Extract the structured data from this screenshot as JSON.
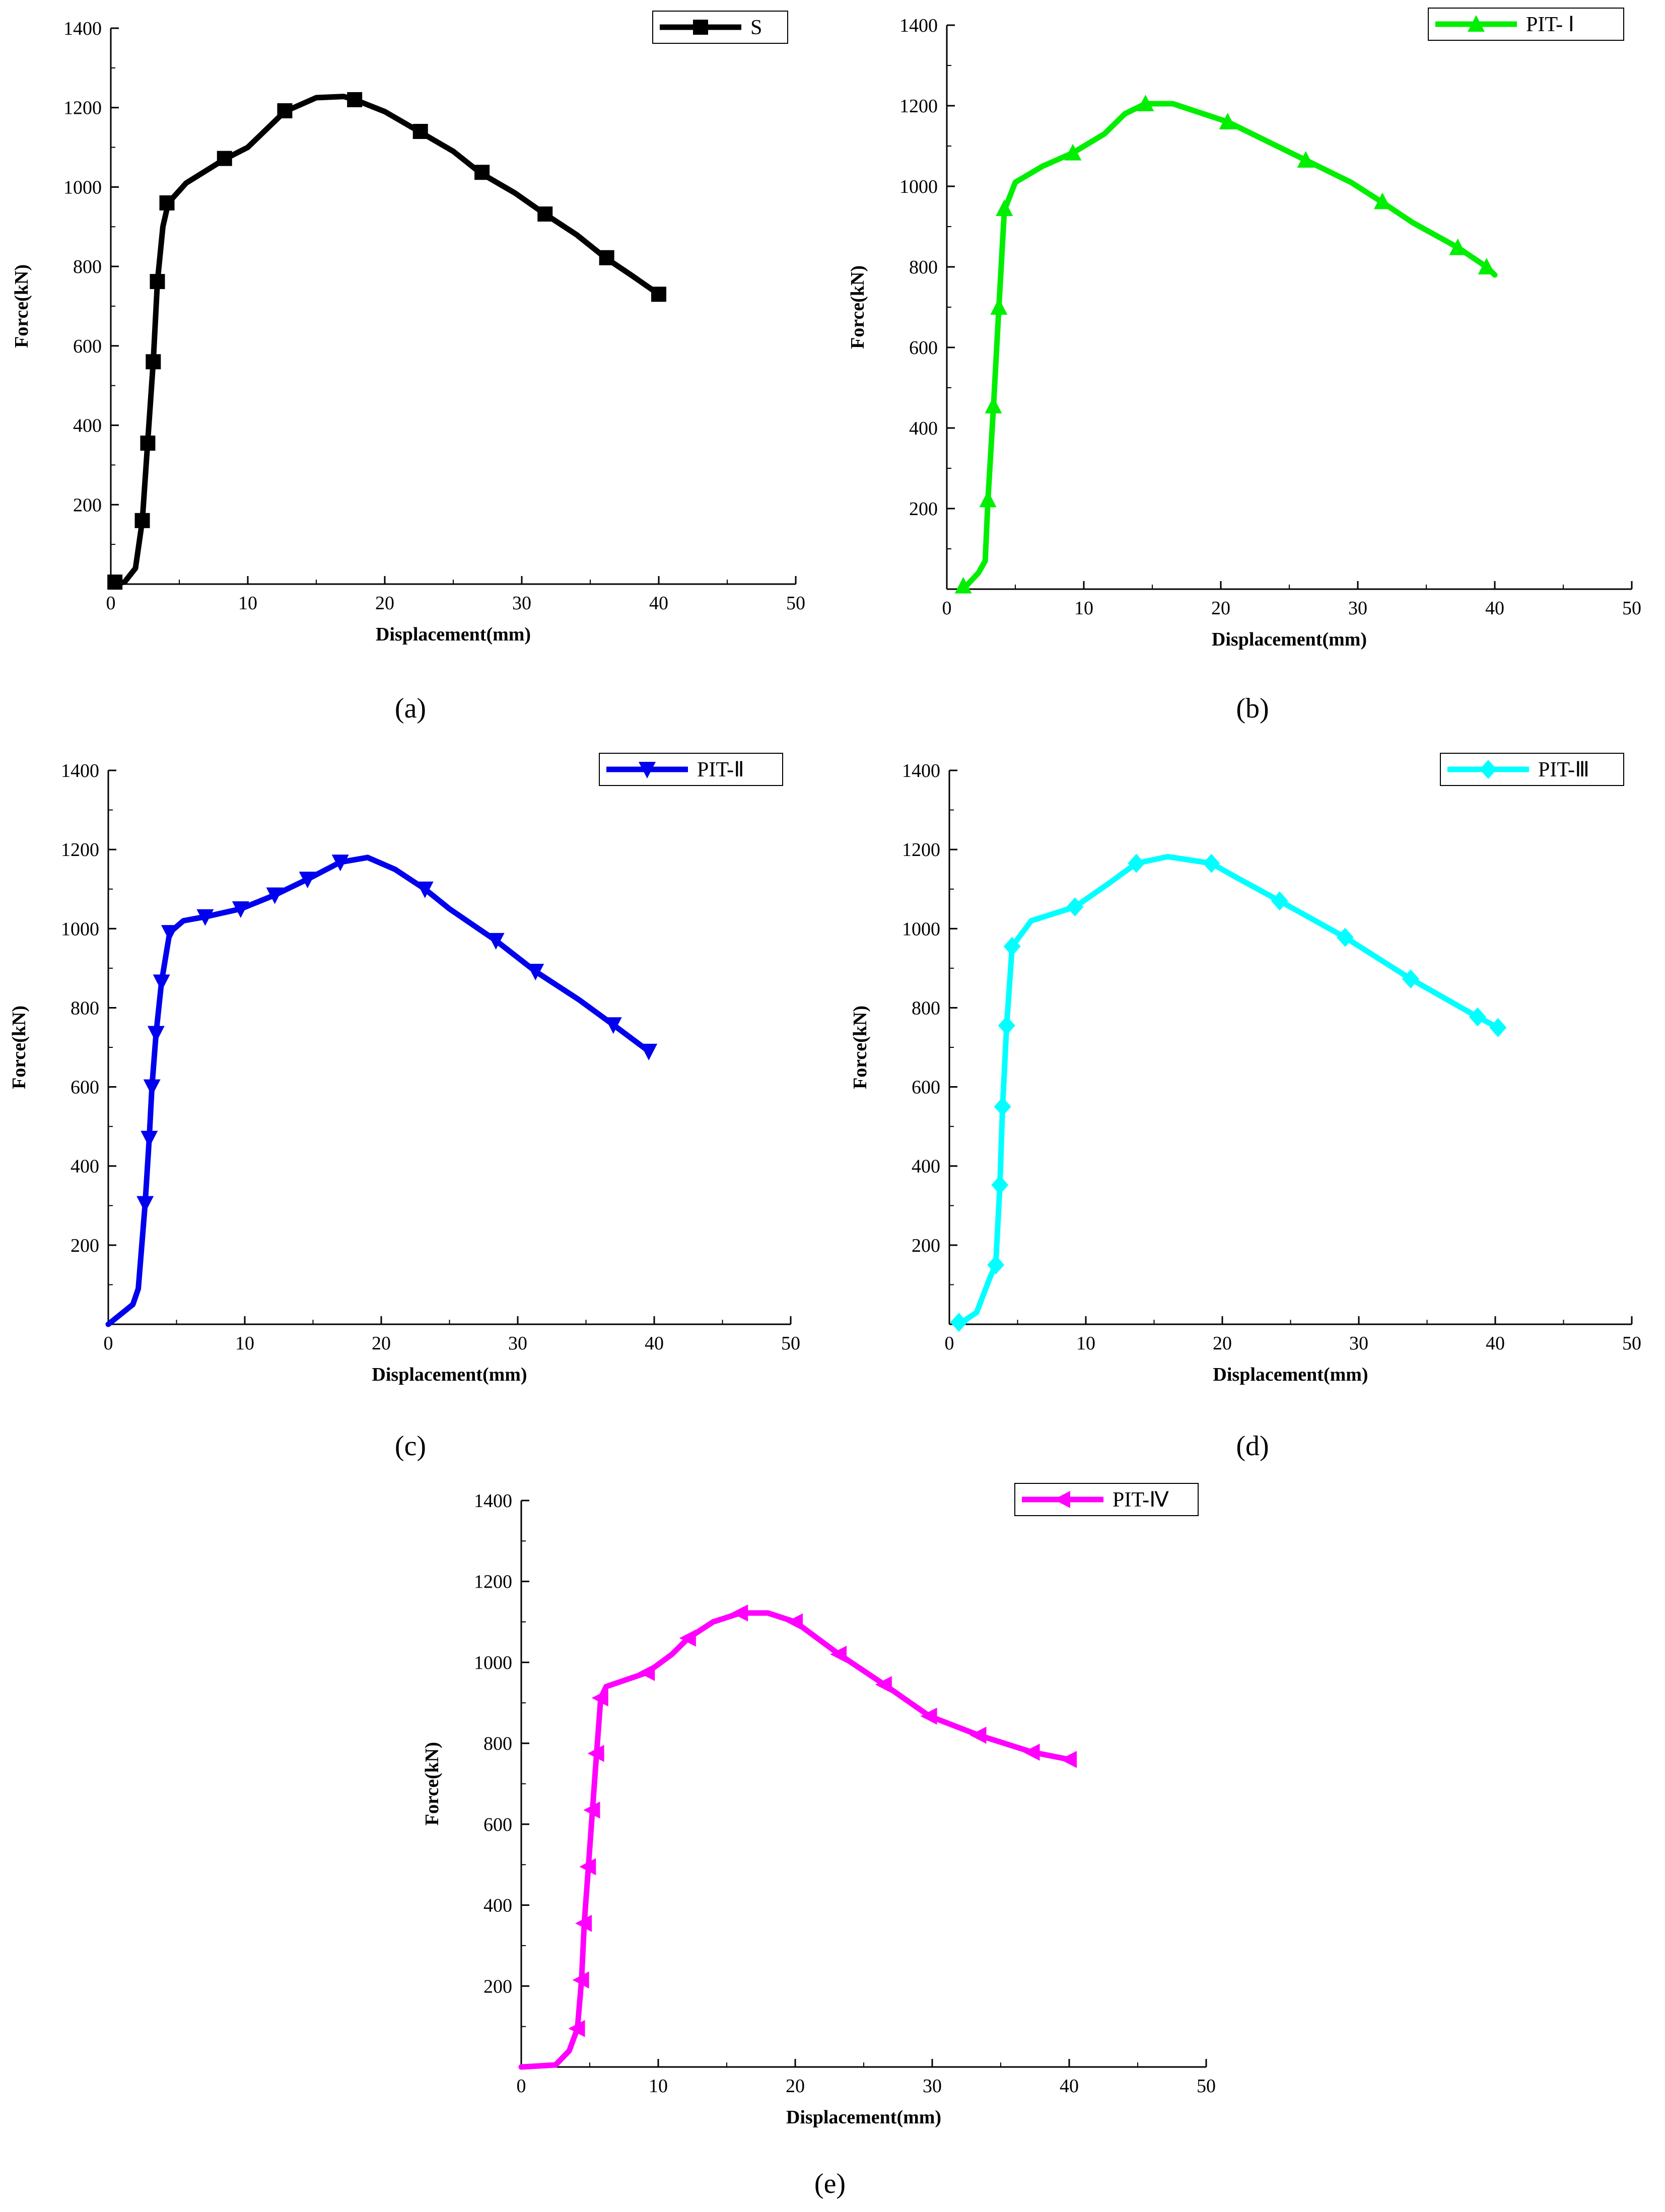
{
  "chart_data": [
    {
      "type": "line",
      "panel": "a",
      "caption": "(a)",
      "xlabel": "Displacement(mm)",
      "ylabel": "Force(kN)",
      "xlim": [
        0,
        50
      ],
      "ylim": [
        0,
        1400
      ],
      "xticks": [
        0,
        10,
        20,
        30,
        40,
        50
      ],
      "yticks": [
        200,
        400,
        600,
        800,
        1000,
        1200,
        1400
      ],
      "legend_position": "top-right",
      "series": [
        {
          "name": "S",
          "color": "#000000",
          "marker": "square",
          "curve": [
            [
              0,
              0
            ],
            [
              1,
              5
            ],
            [
              1.8,
              40
            ],
            [
              2.3,
              160
            ],
            [
              2.7,
              360
            ],
            [
              3.1,
              560
            ],
            [
              3.4,
              760
            ],
            [
              3.8,
              900
            ],
            [
              4.2,
              960
            ],
            [
              5.5,
              1010
            ],
            [
              8.3,
              1070
            ],
            [
              10,
              1100
            ],
            [
              12.7,
              1190
            ],
            [
              15,
              1225
            ],
            [
              17,
              1228
            ],
            [
              17.8,
              1220
            ],
            [
              20,
              1190
            ],
            [
              22.5,
              1140
            ],
            [
              25,
              1090
            ],
            [
              27,
              1035
            ],
            [
              29.5,
              985
            ],
            [
              31.7,
              932
            ],
            [
              34,
              880
            ],
            [
              36.1,
              822
            ],
            [
              38,
              778
            ],
            [
              40,
              730
            ]
          ],
          "markers": [
            [
              0.3,
              5
            ],
            [
              2.3,
              160
            ],
            [
              2.7,
              355
            ],
            [
              3.1,
              560
            ],
            [
              3.4,
              762
            ],
            [
              4.1,
              960
            ],
            [
              8.3,
              1072
            ],
            [
              12.7,
              1192
            ],
            [
              17.8,
              1220
            ],
            [
              22.6,
              1140
            ],
            [
              27.1,
              1037
            ],
            [
              31.7,
              932
            ],
            [
              36.2,
              822
            ],
            [
              40,
              730
            ]
          ]
        }
      ]
    },
    {
      "type": "line",
      "panel": "b",
      "caption": "(b)",
      "xlabel": "Displacement(mm)",
      "ylabel": "Force(kN)",
      "xlim": [
        0,
        50
      ],
      "ylim": [
        0,
        1400
      ],
      "xticks": [
        0,
        10,
        20,
        30,
        40,
        50
      ],
      "yticks": [
        200,
        400,
        600,
        800,
        1000,
        1200,
        1400
      ],
      "legend_position": "top-right",
      "series": [
        {
          "name": "PIT- Ⅰ",
          "color": "#00ee00",
          "marker": "triangle-up",
          "curve": [
            [
              1.2,
              0
            ],
            [
              2.3,
              40
            ],
            [
              2.8,
              70
            ],
            [
              3,
              220
            ],
            [
              3.4,
              450
            ],
            [
              3.8,
              700
            ],
            [
              4.2,
              940
            ],
            [
              5,
              1010
            ],
            [
              7,
              1050
            ],
            [
              9.2,
              1083
            ],
            [
              11.5,
              1130
            ],
            [
              13,
              1180
            ],
            [
              14.5,
              1205
            ],
            [
              16.5,
              1205
            ],
            [
              20.5,
              1160
            ],
            [
              26.2,
              1065
            ],
            [
              29.5,
              1010
            ],
            [
              31.8,
              960
            ],
            [
              34,
              910
            ],
            [
              37.3,
              848
            ],
            [
              39.4,
              800
            ],
            [
              40,
              780
            ]
          ],
          "markers": [
            [
              1.2,
              8
            ],
            [
              3,
              222
            ],
            [
              3.4,
              455
            ],
            [
              3.8,
              700
            ],
            [
              4.2,
              945
            ],
            [
              9.2,
              1083
            ],
            [
              14.5,
              1205
            ],
            [
              20.5,
              1160
            ],
            [
              26.2,
              1065
            ],
            [
              31.8,
              962
            ],
            [
              37.3,
              848
            ],
            [
              39.4,
              800
            ]
          ]
        }
      ]
    },
    {
      "type": "line",
      "panel": "c",
      "caption": "(c)",
      "xlabel": "Displacement(mm)",
      "ylabel": "Force(kN)",
      "xlim": [
        0,
        50
      ],
      "ylim": [
        0,
        1400
      ],
      "xticks": [
        0,
        10,
        20,
        30,
        40,
        50
      ],
      "yticks": [
        200,
        400,
        600,
        800,
        1000,
        1200,
        1400
      ],
      "legend_position": "top-right",
      "series": [
        {
          "name": "PIT-Ⅱ",
          "color": "#0000ee",
          "marker": "triangle-down",
          "curve": [
            [
              0,
              0
            ],
            [
              1.8,
              50
            ],
            [
              2.2,
              90
            ],
            [
              2.7,
              305
            ],
            [
              3,
              470
            ],
            [
              3.2,
              600
            ],
            [
              3.5,
              735
            ],
            [
              3.9,
              865
            ],
            [
              4.5,
              990
            ],
            [
              5.5,
              1020
            ],
            [
              7.1,
              1030
            ],
            [
              9.7,
              1050
            ],
            [
              12.2,
              1085
            ],
            [
              14.6,
              1125
            ],
            [
              17,
              1168
            ],
            [
              19,
              1180
            ],
            [
              21,
              1150
            ],
            [
              23.2,
              1100
            ],
            [
              25,
              1050
            ],
            [
              28.4,
              970
            ],
            [
              31.3,
              892
            ],
            [
              34.5,
              820
            ],
            [
              37,
              757
            ],
            [
              39.6,
              690
            ]
          ],
          "markers": [
            [
              2.7,
              305
            ],
            [
              3,
              470
            ],
            [
              3.2,
              600
            ],
            [
              3.5,
              735
            ],
            [
              3.9,
              865
            ],
            [
              4.5,
              990
            ],
            [
              7.1,
              1030
            ],
            [
              9.7,
              1050
            ],
            [
              12.2,
              1085
            ],
            [
              14.6,
              1125
            ],
            [
              17,
              1168
            ],
            [
              23.2,
              1100
            ],
            [
              28.4,
              970
            ],
            [
              31.3,
              892
            ],
            [
              37,
              757
            ],
            [
              39.6,
              690
            ]
          ]
        }
      ]
    },
    {
      "type": "line",
      "panel": "d",
      "caption": "(d)",
      "xlabel": "Displacement(mm)",
      "ylabel": "Force(kN)",
      "xlim": [
        0,
        50
      ],
      "ylim": [
        0,
        1400
      ],
      "xticks": [
        0,
        10,
        20,
        30,
        40,
        50
      ],
      "yticks": [
        200,
        400,
        600,
        800,
        1000,
        1200,
        1400
      ],
      "legend_position": "top-right",
      "series": [
        {
          "name": "PIT-Ⅲ",
          "color": "#00ffff",
          "marker": "diamond",
          "curve": [
            [
              0.7,
              0
            ],
            [
              2,
              30
            ],
            [
              3,
              120
            ],
            [
              3.4,
              150
            ],
            [
              3.7,
              350
            ],
            [
              3.9,
              550
            ],
            [
              4.2,
              755
            ],
            [
              4.6,
              955
            ],
            [
              6,
              1020
            ],
            [
              9.2,
              1055
            ],
            [
              11.5,
              1110
            ],
            [
              13.7,
              1165
            ],
            [
              16,
              1182
            ],
            [
              19.2,
              1165
            ],
            [
              21,
              1130
            ],
            [
              24.2,
              1070
            ],
            [
              29,
              978
            ],
            [
              33.8,
              873
            ],
            [
              38.7,
              777
            ],
            [
              40.2,
              750
            ]
          ],
          "markers": [
            [
              0.7,
              5
            ],
            [
              3.4,
              150
            ],
            [
              3.7,
              352
            ],
            [
              3.9,
              550
            ],
            [
              4.2,
              755
            ],
            [
              4.6,
              955
            ],
            [
              9.2,
              1055
            ],
            [
              13.7,
              1165
            ],
            [
              19.2,
              1165
            ],
            [
              24.2,
              1070
            ],
            [
              29,
              978
            ],
            [
              33.8,
              873
            ],
            [
              38.7,
              777
            ],
            [
              40.2,
              750
            ]
          ]
        }
      ]
    },
    {
      "type": "line",
      "panel": "e",
      "caption": "(e)",
      "xlabel": "Displacement(mm)",
      "ylabel": "Force(kN)",
      "xlim": [
        0,
        50
      ],
      "ylim": [
        0,
        1400
      ],
      "xticks": [
        0,
        10,
        20,
        30,
        40,
        50
      ],
      "yticks": [
        200,
        400,
        600,
        800,
        1000,
        1200,
        1400
      ],
      "legend_position": "top-right",
      "series": [
        {
          "name": "PIT-Ⅳ",
          "color": "#ff00ff",
          "marker": "triangle-left",
          "curve": [
            [
              0,
              0
            ],
            [
              2.5,
              5
            ],
            [
              3.5,
              40
            ],
            [
              4.1,
              95
            ],
            [
              4.4,
              215
            ],
            [
              4.6,
              355
            ],
            [
              4.9,
              495
            ],
            [
              5.2,
              635
            ],
            [
              5.5,
              775
            ],
            [
              5.8,
              912
            ],
            [
              6.2,
              940
            ],
            [
              9.2,
              975
            ],
            [
              11,
              1020
            ],
            [
              12.2,
              1060
            ],
            [
              14,
              1100
            ],
            [
              16,
              1122
            ],
            [
              18,
              1122
            ],
            [
              20,
              1100
            ],
            [
              23.2,
              1020
            ],
            [
              26.5,
              945
            ],
            [
              29.8,
              867
            ],
            [
              33.4,
              820
            ],
            [
              37.3,
              778
            ],
            [
              40,
              760
            ]
          ],
          "markers": [
            [
              4.1,
              95
            ],
            [
              4.4,
              215
            ],
            [
              4.6,
              355
            ],
            [
              4.9,
              495
            ],
            [
              5.2,
              635
            ],
            [
              5.5,
              775
            ],
            [
              5.8,
              912
            ],
            [
              9.2,
              975
            ],
            [
              12.2,
              1060
            ],
            [
              16,
              1122
            ],
            [
              20,
              1100
            ],
            [
              23.2,
              1020
            ],
            [
              26.5,
              945
            ],
            [
              29.8,
              867
            ],
            [
              33.4,
              820
            ],
            [
              37.3,
              778
            ],
            [
              40,
              760
            ]
          ]
        }
      ]
    }
  ]
}
